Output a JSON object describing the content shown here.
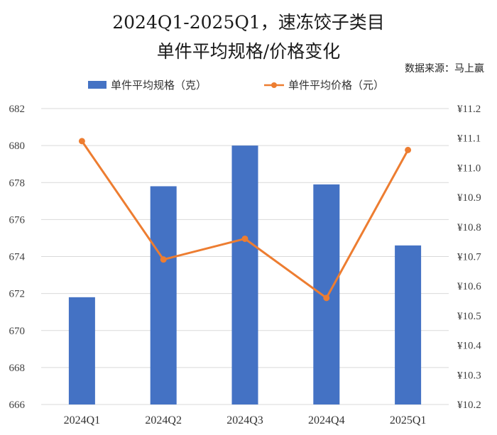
{
  "chart_data": {
    "type": "bar",
    "title": "2024Q1-2025Q1，速冻饺子类目",
    "subtitle": "单件平均规格/价格变化",
    "source": "数据来源：马上赢",
    "categories": [
      "2024Q1",
      "2024Q2",
      "2024Q3",
      "2024Q4",
      "2025Q1"
    ],
    "series": [
      {
        "name": "单件平均规格（克）",
        "type": "bar",
        "axis": "left",
        "color": "#4472C4",
        "values": [
          671.8,
          677.8,
          680.0,
          677.9,
          674.6
        ]
      },
      {
        "name": "单件平均价格（元）",
        "type": "line",
        "axis": "right",
        "color": "#ED7D31",
        "values": [
          11.09,
          10.69,
          10.76,
          10.56,
          11.06
        ]
      }
    ],
    "y_left": {
      "min": 666,
      "max": 682,
      "step": 2,
      "ticks": [
        "666",
        "668",
        "670",
        "672",
        "674",
        "676",
        "678",
        "680",
        "682"
      ]
    },
    "y_right": {
      "min": 10.2,
      "max": 11.2,
      "step": 0.1,
      "ticks": [
        "¥10.2",
        "¥10.3",
        "¥10.4",
        "¥10.5",
        "¥10.6",
        "¥10.7",
        "¥10.8",
        "¥10.9",
        "¥11.0",
        "¥11.1",
        "¥11.2"
      ]
    },
    "grid": true,
    "legend_position": "top"
  }
}
